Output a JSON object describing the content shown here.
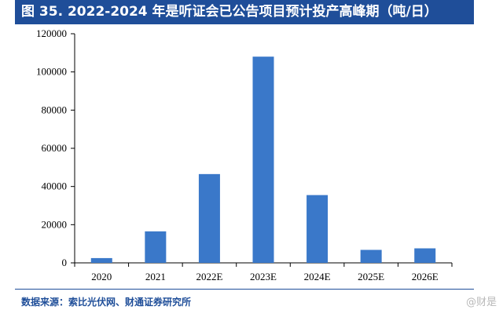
{
  "title": "图 35. 2022-2024 年是听证会已公告项目预计投产高峰期（吨/日）",
  "source": "数据来源：索比光伏网、财通证券研究所",
  "watermark": "@财是",
  "colors": {
    "bar": "#3a78c9",
    "title_bg": "#1f4e99"
  },
  "chart_data": {
    "type": "bar",
    "categories": [
      "2020",
      "2021",
      "2022E",
      "2023E",
      "2024E",
      "2025E",
      "2026E"
    ],
    "values": [
      2500,
      16500,
      46500,
      108000,
      35500,
      6800,
      7600
    ],
    "yticks": [
      0,
      20000,
      40000,
      60000,
      80000,
      100000,
      120000
    ],
    "ylim": [
      0,
      120000
    ],
    "grid": false
  }
}
